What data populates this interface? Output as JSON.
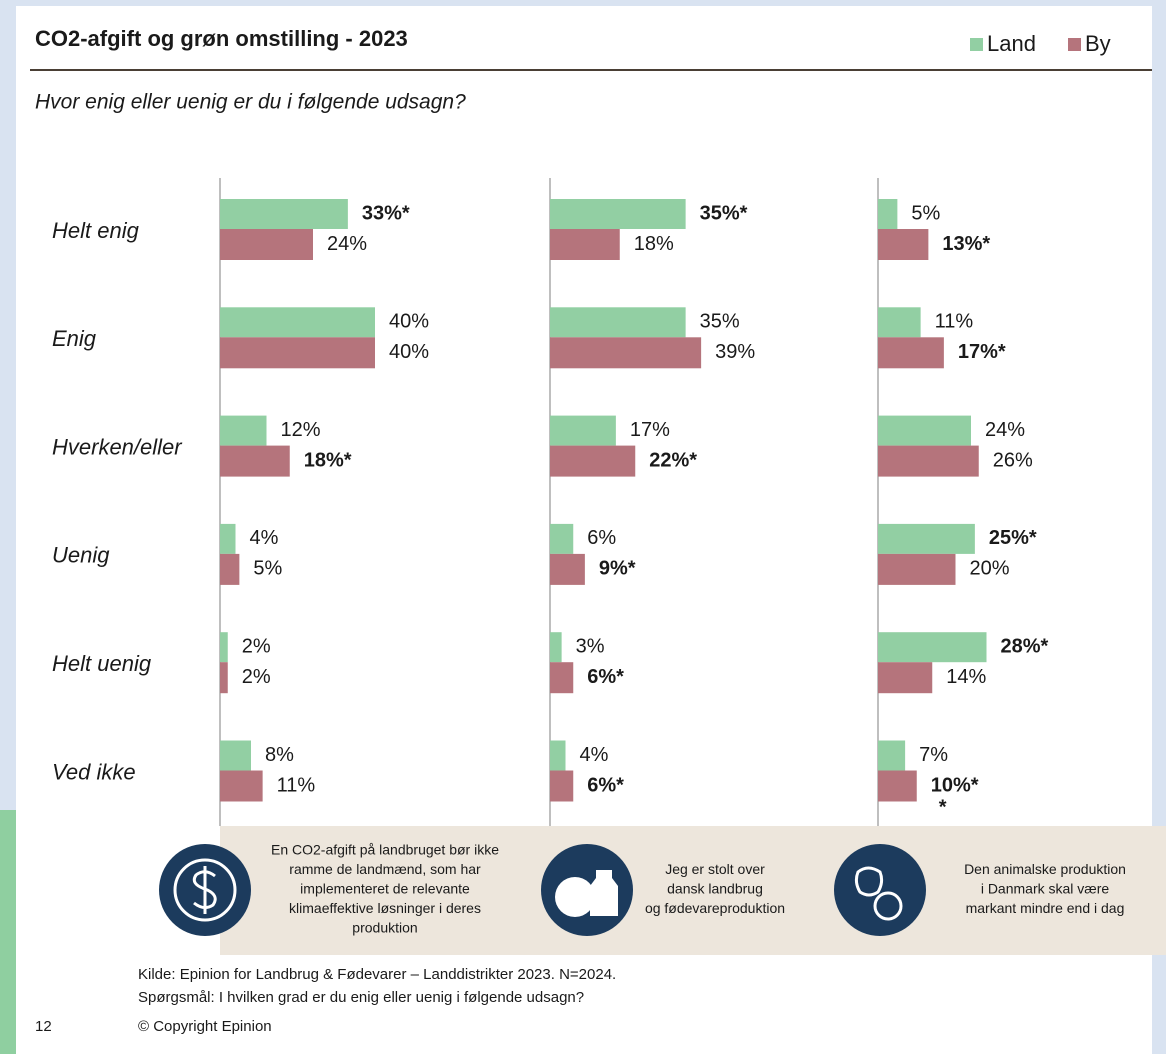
{
  "chart_data": {
    "type": "bar",
    "orientation": "horizontal",
    "title": "CO2-afgift og grøn omstilling - 2023",
    "subtitle": "Hvor enig eller uenig er du i følgende udsagn?",
    "categories": [
      "Helt enig",
      "Enig",
      "Hverken/eller",
      "Uenig",
      "Helt uenig",
      "Ved ikke"
    ],
    "series": [
      {
        "name": "Land",
        "color": "#92cfa3"
      },
      {
        "name": "By",
        "color": "#b5747c"
      }
    ],
    "xlim": [
      0,
      40
    ],
    "panels": [
      {
        "caption": [
          "En CO2-afgift på landbruget bør ikke",
          "ramme de landmænd, som har",
          "implementeret de relevante",
          "klimaeffektive løsninger i deres",
          "produktion"
        ],
        "values": [
          [
            33,
            40,
            12,
            4,
            2,
            8
          ],
          [
            24,
            40,
            18,
            5,
            2,
            11
          ]
        ],
        "value_labels": [
          [
            "33%*",
            "40%",
            "12%",
            "4%",
            "2%",
            "8%"
          ],
          [
            "24%",
            "40%",
            "18%*",
            "5%",
            "2%",
            "11%"
          ]
        ]
      },
      {
        "caption": [
          "Jeg er stolt over",
          "dansk landbrug",
          "og fødevareproduktion"
        ],
        "values": [
          [
            35,
            35,
            17,
            6,
            3,
            4
          ],
          [
            18,
            39,
            22,
            9,
            6,
            6
          ]
        ],
        "value_labels": [
          [
            "35%*",
            "35%",
            "17%",
            "6%",
            "3%",
            "4%"
          ],
          [
            "18%",
            "39%",
            "22%*",
            "9%*",
            "6%*",
            "6%*"
          ]
        ]
      },
      {
        "caption": [
          "Den animalske produktion",
          "i Danmark skal være",
          "markant mindre end i dag"
        ],
        "values": [
          [
            5,
            11,
            24,
            25,
            28,
            7
          ],
          [
            13,
            17,
            26,
            20,
            14,
            10
          ]
        ],
        "value_labels": [
          [
            "5%",
            "11%",
            "24%",
            "25%*",
            "28%*",
            "7%"
          ],
          [
            "13%*",
            "17%*",
            "26%",
            "20%",
            "14%",
            [
              "10%*",
              "*"
            ]
          ]
        ]
      }
    ]
  },
  "footer": {
    "source": "Kilde: Epinion for Landbrug & Fødevarer – Landdistrikter 2023. N=2024.",
    "question": "Spørgsmål: I hvilken grad er du enig eller uenig i følgende udsagn?",
    "page_number": "12",
    "copyright": "© Copyright Epinion"
  }
}
